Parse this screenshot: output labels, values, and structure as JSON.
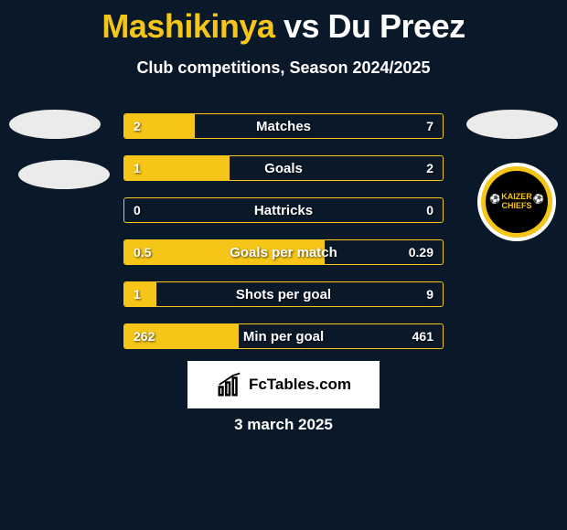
{
  "title": {
    "player_a": "Mashikinya",
    "vs": "vs",
    "player_b": "Du Preez",
    "color_a": "#f5c518",
    "color_vs": "#ffffff",
    "color_b": "#ffffff"
  },
  "subtitle": "Club competitions, Season 2024/2025",
  "bars": {
    "fill_color": "#f5c518",
    "border_color": "#f5c518",
    "track_color": "#0a1929",
    "rows": [
      {
        "label": "Matches",
        "left": "2",
        "right": "7",
        "fill_pct": 22
      },
      {
        "label": "Goals",
        "left": "1",
        "right": "2",
        "fill_pct": 33
      },
      {
        "label": "Hattricks",
        "left": "0",
        "right": "0",
        "fill_pct": 0
      },
      {
        "label": "Goals per match",
        "left": "0.5",
        "right": "0.29",
        "fill_pct": 63
      },
      {
        "label": "Shots per goal",
        "left": "1",
        "right": "9",
        "fill_pct": 10
      },
      {
        "label": "Min per goal",
        "left": "262",
        "right": "461",
        "fill_pct": 36
      }
    ]
  },
  "badge": {
    "text": "KAIZER CHIEFS",
    "ring_color": "#f5c518",
    "inner_color": "#000000"
  },
  "attrib": {
    "text": "FcTables.com"
  },
  "date": "3 march 2025",
  "colors": {
    "background": "#0a1929",
    "accent": "#f5c518",
    "text": "#ffffff"
  }
}
